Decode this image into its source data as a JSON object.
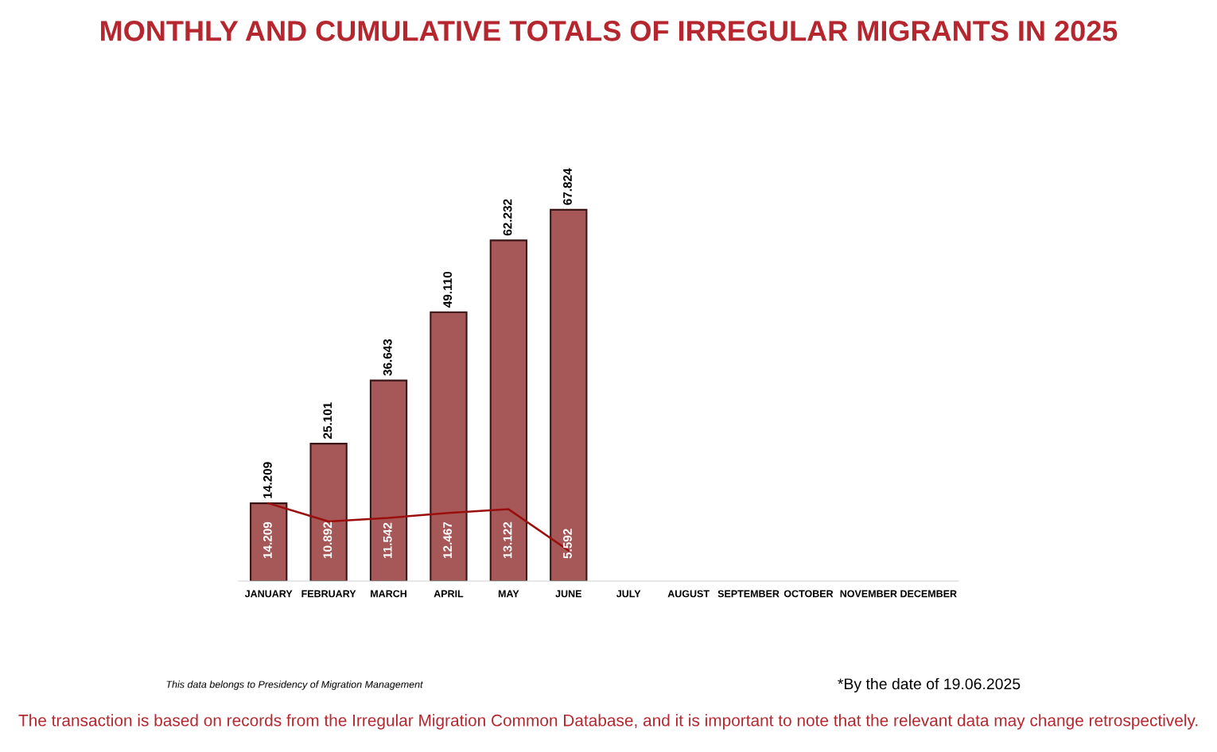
{
  "chart_data": {
    "type": "bar",
    "title": "MONTHLY AND CUMULATIVE TOTALS OF IRREGULAR MIGRANTS IN 2025",
    "categories": [
      "JANUARY",
      "FEBRUARY",
      "MARCH",
      "APRIL",
      "MAY",
      "JUNE",
      "JULY",
      "AUGUST",
      "SEPTEMBER",
      "OCTOBER",
      "NOVEMBER",
      "DECEMBER"
    ],
    "series": [
      {
        "color": "#a65858",
        "values": [
          14209,
          25101,
          36643,
          49110,
          62232,
          67824,
          null,
          null,
          null,
          null,
          null,
          null
        ],
        "value_labels": [
          "14.209",
          "25.101",
          "36.643",
          "49.110",
          "62.232",
          "67.824",
          null,
          null,
          null,
          null,
          null,
          null
        ]
      },
      {
        "type": "line",
        "color": "#9b0e0e",
        "values": [
          14209,
          10892,
          11542,
          12467,
          13122,
          5592,
          null,
          null,
          null,
          null,
          null,
          null
        ],
        "value_labels": [
          "14.209",
          "10.892",
          "11.542",
          "12.467",
          "13.122",
          "5.592",
          null,
          null,
          null,
          null,
          null,
          null
        ]
      }
    ],
    "grid": false,
    "marker": "none",
    "line_style": "solid",
    "annotations": [
      "This data belongs to Presidency of Migration Management",
      "*By the date of 19.06.2025",
      "The transaction is based on records from the Irregular Migration Common Database, and it is important to note that the relevant data may change retrospectively."
    ]
  }
}
